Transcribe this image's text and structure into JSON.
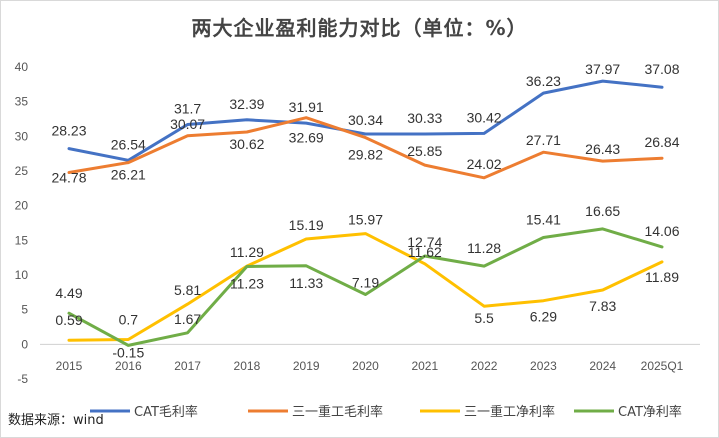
{
  "chart_data": {
    "type": "line",
    "title": "两大企业盈利能力对比（单位：%）",
    "source": "数据来源：wind",
    "categories": [
      "2015",
      "2016",
      "2017",
      "2018",
      "2019",
      "2020",
      "2021",
      "2022",
      "2023",
      "2024",
      "2025Q1"
    ],
    "ylim": [
      -5,
      40
    ],
    "yticks": [
      -5,
      0,
      5,
      10,
      15,
      20,
      25,
      30,
      35,
      40
    ],
    "grid": false,
    "legend_position": "bottom",
    "series": [
      {
        "name": "CAT毛利率",
        "color": "#4472C4",
        "values": [
          28.23,
          26.54,
          31.7,
          32.39,
          31.91,
          30.34,
          30.33,
          30.42,
          36.23,
          37.97,
          37.08
        ]
      },
      {
        "name": "三一重工毛利率",
        "color": "#ED7D31",
        "values": [
          24.78,
          26.21,
          30.07,
          30.62,
          32.69,
          29.82,
          25.85,
          24.02,
          27.71,
          26.43,
          26.84
        ]
      },
      {
        "name": "三一重工净利率",
        "color": "#FFC000",
        "values": [
          0.59,
          0.7,
          5.81,
          11.29,
          15.19,
          15.97,
          11.62,
          5.5,
          6.29,
          7.83,
          11.89
        ]
      },
      {
        "name": "CAT净利率",
        "color": "#70AD47",
        "values": [
          4.49,
          -0.15,
          1.67,
          11.23,
          11.33,
          7.19,
          12.74,
          11.28,
          15.41,
          16.65,
          14.06
        ]
      }
    ],
    "data_labels": [
      [
        "28.23",
        "26.54",
        "31.7",
        "32.39",
        "31.91",
        "30.34",
        "30.33",
        "30.42",
        "36.23",
        "37.97",
        "37.08"
      ],
      [
        "24.78",
        "26.21",
        "30.07",
        "30.62",
        "32.69",
        "29.82",
        "25.85",
        "24.02",
        "27.71",
        "26.43",
        "26.84"
      ],
      [
        "0.59",
        "0.7",
        "5.81",
        "11.29",
        "15.19",
        "15.97",
        "11.62",
        "5.5",
        "6.29",
        "7.83",
        "11.89"
      ],
      [
        "4.49",
        "-0.15",
        "1.67",
        "11.23",
        "11.33",
        "7.19",
        "12.74",
        "11.28",
        "15.41",
        "16.65",
        "14.06"
      ]
    ]
  }
}
